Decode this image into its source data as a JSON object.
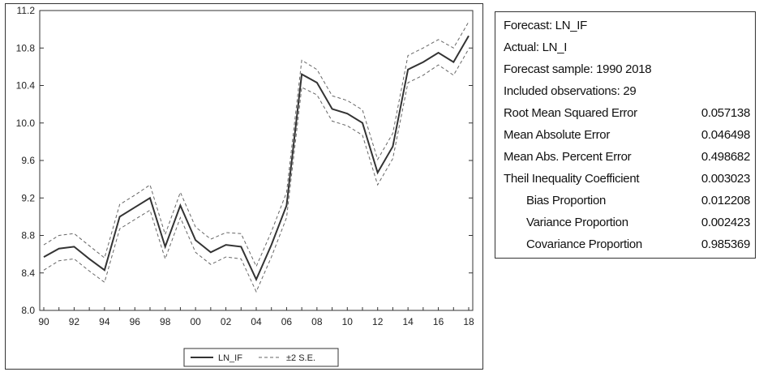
{
  "chart_data": {
    "type": "line",
    "x_labels": [
      "90",
      "92",
      "94",
      "96",
      "98",
      "00",
      "02",
      "04",
      "06",
      "08",
      "10",
      "12",
      "14",
      "16",
      "18"
    ],
    "x": [
      1990,
      1991,
      1992,
      1993,
      1994,
      1995,
      1996,
      1997,
      1998,
      1999,
      2000,
      2001,
      2002,
      2003,
      2004,
      2005,
      2006,
      2007,
      2008,
      2009,
      2010,
      2011,
      2012,
      2013,
      2014,
      2015,
      2016,
      2017,
      2018
    ],
    "y_ticks": [
      "8.0",
      "8.4",
      "8.8",
      "9.2",
      "9.6",
      "10.0",
      "10.4",
      "10.8",
      "11.2"
    ],
    "ylim": [
      8.0,
      11.2
    ],
    "series": [
      {
        "name": "LN_IF",
        "style": "solid",
        "color": "#333333",
        "values": [
          8.57,
          8.66,
          8.68,
          8.55,
          8.43,
          9.0,
          9.1,
          9.2,
          8.68,
          9.12,
          8.75,
          8.62,
          8.7,
          8.68,
          8.33,
          8.7,
          9.12,
          10.52,
          10.43,
          10.15,
          10.1,
          10.0,
          9.47,
          9.75,
          10.57,
          10.65,
          10.75,
          10.65,
          10.93
        ]
      },
      {
        "name": "±2 S.E.",
        "style": "dashed",
        "color": "#666666",
        "values": [
          8.7,
          8.8,
          8.82,
          8.69,
          8.56,
          9.13,
          9.23,
          9.34,
          8.81,
          9.26,
          8.89,
          8.76,
          8.83,
          8.82,
          8.47,
          8.84,
          9.26,
          10.67,
          10.57,
          10.29,
          10.24,
          10.14,
          9.61,
          9.89,
          10.72,
          10.8,
          10.89,
          10.8,
          11.08
        ]
      },
      {
        "name": "",
        "style": "dashed",
        "color": "#666666",
        "values": [
          8.43,
          8.53,
          8.55,
          8.42,
          8.3,
          8.87,
          8.97,
          9.07,
          8.55,
          8.99,
          8.62,
          8.49,
          8.57,
          8.55,
          8.2,
          8.57,
          8.99,
          10.38,
          10.3,
          10.02,
          9.97,
          9.87,
          9.34,
          9.62,
          10.43,
          10.51,
          10.62,
          10.51,
          10.79
        ]
      }
    ],
    "legend": {
      "placement": "bottom-center",
      "entries": [
        "LN_IF",
        "±2 S.E."
      ]
    },
    "grid": false
  },
  "stats": {
    "forecast_line": "Forecast: LN_IF",
    "actual_line": "Actual: LN_I",
    "sample_line": "Forecast sample: 1990 2018",
    "obs_line": "Included observations: 29",
    "rows": [
      {
        "label": "Root Mean Squared Error",
        "value": "0.057138",
        "indent": false
      },
      {
        "label": "Mean Absolute Error",
        "value": "0.046498",
        "indent": false
      },
      {
        "label": "Mean Abs. Percent Error",
        "value": "0.498682",
        "indent": false
      },
      {
        "label": "Theil Inequality Coefficient",
        "value": "0.003023",
        "indent": false
      },
      {
        "label": "Bias Proportion",
        "value": "0.012208",
        "indent": true
      },
      {
        "label": "Variance Proportion",
        "value": "0.002423",
        "indent": true
      },
      {
        "label": "Covariance Proportion",
        "value": "0.985369",
        "indent": true
      }
    ]
  }
}
